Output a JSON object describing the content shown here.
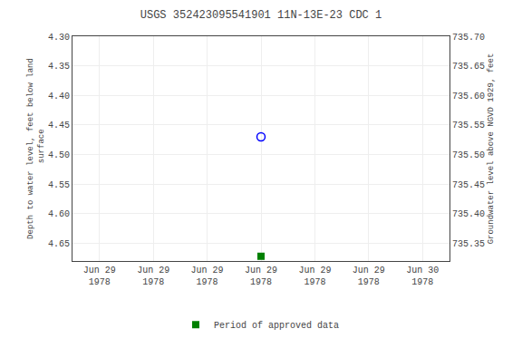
{
  "chart_data": {
    "type": "scatter",
    "title": "USGS 352423095541901 11N-13E-23 CDC 1",
    "y_label": "Depth to water level, feet below land\n surface",
    "y2_label": "Groundwater level above NGVD 1929, feet",
    "categories": [
      "Jun 29\n1978",
      "Jun 29\n1978",
      "Jun 29\n1978",
      "Jun 29\n1978",
      "Jun 29\n1978",
      "Jun 29\n1978",
      "Jun 30\n1978"
    ],
    "series": [
      {
        "color": "blue",
        "marker": "open_circle",
        "values": [
          null,
          null,
          null,
          4.47,
          null,
          null,
          null
        ]
      },
      {
        "name": "Period of approved data",
        "color": "#008000",
        "marker": "square",
        "values": [
          null,
          null,
          null,
          4.672,
          null,
          null,
          null
        ]
      }
    ],
    "ylim": [
      4.68,
      4.3
    ],
    "yticks": [
      {
        "value": 4.3,
        "label": "4.30"
      },
      4.35,
      {
        "value": 4.4,
        "label": "4.40"
      },
      4.45,
      {
        "value": 4.5,
        "label": "4.50"
      },
      4.55,
      {
        "value": 4.6,
        "label": "4.60"
      },
      4.65
    ],
    "y2lim": [
      735.32,
      735.7
    ],
    "y2ticks": [
      {
        "value": 735.7,
        "label": "735.70"
      },
      735.65,
      {
        "value": 735.6,
        "label": "735.60"
      },
      735.55,
      {
        "value": 735.5,
        "label": "735.50"
      },
      735.45,
      {
        "value": 735.4,
        "label": "735.40"
      },
      735.35
    ],
    "grid": true,
    "legend": "bottom"
  }
}
